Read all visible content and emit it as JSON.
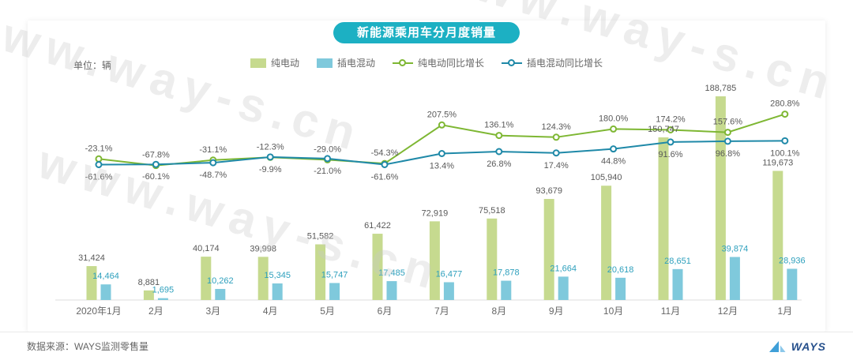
{
  "title": "新能源乘用车分月度销量",
  "title_bg": "#1cb0c3",
  "unit_label": "单位：辆",
  "watermark": "www.way-s.cn",
  "footer": {
    "source": "数据来源：WAYS监测零售量",
    "logo_text": "WAYS"
  },
  "chart_data": {
    "type": "combo-bar-line",
    "title": "新能源乘用车分月度销量",
    "unit": "辆",
    "legend_position": "top",
    "grid": false,
    "value_axes_visible": false,
    "categories": [
      "2020年1月",
      "2月",
      "3月",
      "4月",
      "5月",
      "6月",
      "7月",
      "8月",
      "9月",
      "10月",
      "11月",
      "12月",
      "1月"
    ],
    "series": [
      {
        "name": "纯电动",
        "type": "bar",
        "unit": "辆",
        "color": "#c6da8f",
        "label_color": "#595959",
        "values": [
          31424,
          8881,
          40174,
          39998,
          51582,
          61422,
          72919,
          75518,
          93679,
          105940,
          150747,
          188785,
          119673
        ]
      },
      {
        "name": "插电混动",
        "type": "bar",
        "unit": "辆",
        "color": "#7fc9dc",
        "label_color": "#2ea0bd",
        "values": [
          14464,
          1695,
          10262,
          15345,
          15747,
          17485,
          16477,
          17878,
          21664,
          20618,
          28651,
          39874,
          28936
        ]
      },
      {
        "name": "纯电动同比增长",
        "type": "line",
        "unit": "%",
        "color": "#7eb733",
        "label_color": "#595959",
        "values": [
          -23.1,
          -67.8,
          -31.1,
          -12.3,
          -29.0,
          -54.3,
          207.5,
          136.1,
          124.3,
          180.0,
          174.2,
          157.6,
          280.8
        ]
      },
      {
        "name": "插电混动同比增长",
        "type": "line",
        "unit": "%",
        "color": "#1f89a8",
        "label_color": "#595959",
        "values": [
          -61.6,
          -60.1,
          -48.7,
          -9.9,
          -21.0,
          -61.6,
          13.4,
          26.8,
          17.4,
          44.8,
          91.6,
          96.8,
          100.1
        ]
      }
    ]
  }
}
